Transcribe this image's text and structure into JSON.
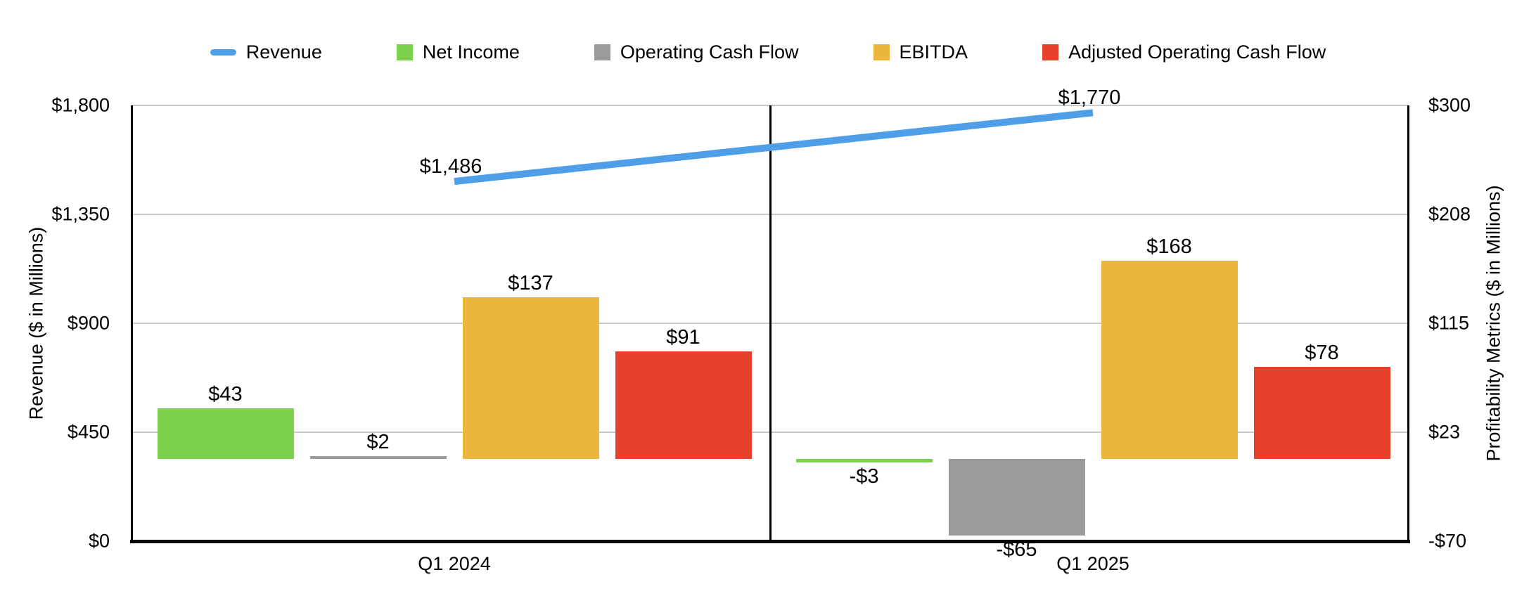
{
  "legend": {
    "items": [
      {
        "label": "Revenue",
        "marker": "dash",
        "color": "#4F9FE8"
      },
      {
        "label": "Net Income",
        "marker": "square",
        "color": "#7CD24E"
      },
      {
        "label": "Operating Cash Flow",
        "marker": "square",
        "color": "#9B9B9B"
      },
      {
        "label": "EBITDA",
        "marker": "square",
        "color": "#ECB53D"
      },
      {
        "label": "Adjusted Operating Cash Flow",
        "marker": "square",
        "color": "#E8412B"
      }
    ]
  },
  "chart_data": {
    "type": "combo-bar-line",
    "categories": [
      "Q1 2024",
      "Q1 2025"
    ],
    "left_axis": {
      "title": "Revenue ($ in Millions)",
      "min": 0,
      "max": 1800,
      "ticks": [
        "$0",
        "$450",
        "$900",
        "$1,350",
        "$1,800"
      ]
    },
    "right_axis": {
      "title": "Profitability Metrics ($ in Millions)",
      "min": -70,
      "max": 300,
      "ticks": [
        "-$70",
        "$23",
        "$115",
        "$208",
        "$300"
      ]
    },
    "line_series": {
      "name": "Revenue",
      "axis": "left",
      "color": "#4F9FE8",
      "values": [
        1486,
        1770
      ],
      "labels": [
        "$1,486",
        "$1,770"
      ]
    },
    "bar_series": [
      {
        "name": "Net Income",
        "axis": "right",
        "color": "#7CD24E",
        "values": [
          43,
          -3
        ],
        "labels": [
          "$43",
          "-$3"
        ]
      },
      {
        "name": "Operating Cash Flow",
        "axis": "right",
        "color": "#9B9B9B",
        "values": [
          2,
          -65
        ],
        "labels": [
          "$2",
          "-$65"
        ]
      },
      {
        "name": "EBITDA",
        "axis": "right",
        "color": "#ECB53D",
        "values": [
          137,
          168
        ],
        "labels": [
          "$137",
          "$168"
        ]
      },
      {
        "name": "Adjusted Operating Cash Flow",
        "axis": "right",
        "color": "#E8412B",
        "values": [
          91,
          78
        ],
        "labels": [
          "$91",
          "$78"
        ]
      }
    ],
    "grid": true,
    "legend_position": "top",
    "colors": {
      "gridline": "#C9C9C9",
      "axis": "#000000",
      "text": "#000000",
      "background": "#FFFFFF"
    }
  }
}
